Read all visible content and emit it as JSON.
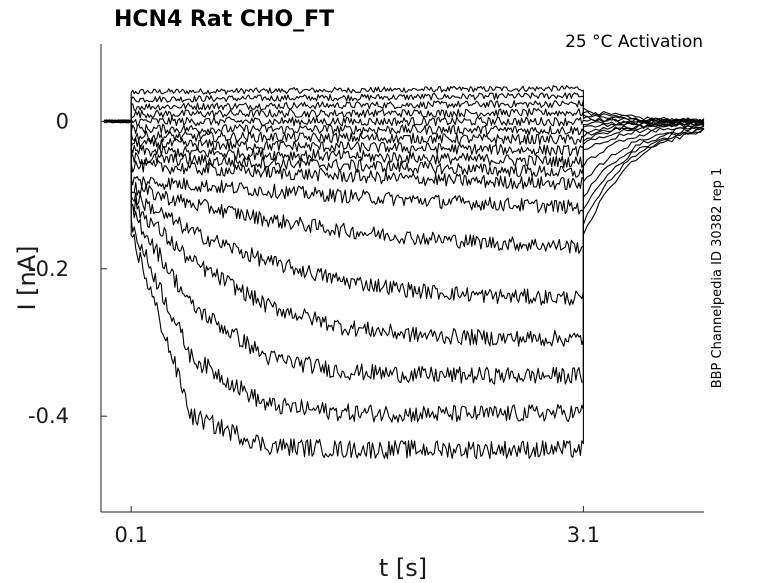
{
  "chart_data": {
    "type": "line",
    "title": "HCN4  Rat  CHO_FT",
    "annotation": "25 °C  Activation",
    "side_label": "BBP Channelpedia ID 30382 rep 1",
    "xlabel": "t [s]",
    "ylabel": "I [nA]",
    "xlim": [
      -0.1,
      3.9
    ],
    "ylim": [
      -0.53,
      0.105
    ],
    "x_ticks": [
      {
        "value": 0.1,
        "label": "0.1"
      },
      {
        "value": 3.1,
        "label": "3.1"
      }
    ],
    "y_ticks": [
      {
        "value": 0,
        "label": "0"
      },
      {
        "value": -0.2,
        "label": "-0.2"
      },
      {
        "value": -0.4,
        "label": "-0.4"
      }
    ],
    "step": {
      "start": 0.1,
      "end": 3.1
    },
    "grid": false,
    "legend": "none",
    "series": [
      {
        "values": [
          [
            0.1,
            0.04
          ],
          [
            3.1,
            0.045
          ]
        ]
      },
      {
        "values": [
          [
            0.1,
            0.03
          ],
          [
            3.1,
            0.035
          ]
        ]
      },
      {
        "values": [
          [
            0.1,
            0.02
          ],
          [
            3.1,
            0.024
          ]
        ]
      },
      {
        "values": [
          [
            0.1,
            0.01
          ],
          [
            3.1,
            0.012
          ]
        ]
      },
      {
        "values": [
          [
            0.1,
            0.0
          ],
          [
            3.1,
            0.0
          ]
        ]
      },
      {
        "values": [
          [
            0.1,
            -0.01
          ],
          [
            3.1,
            -0.012
          ]
        ]
      },
      {
        "values": [
          [
            0.1,
            -0.02
          ],
          [
            3.1,
            -0.025
          ]
        ]
      },
      {
        "values": [
          [
            0.1,
            -0.03
          ],
          [
            3.1,
            -0.04
          ]
        ]
      },
      {
        "values": [
          [
            0.1,
            -0.04
          ],
          [
            3.1,
            -0.055
          ]
        ]
      },
      {
        "values": [
          [
            0.1,
            -0.05
          ],
          [
            3.1,
            -0.07
          ]
        ]
      },
      {
        "values": [
          [
            0.1,
            -0.06
          ],
          [
            0.5,
            -0.064
          ],
          [
            1.0,
            -0.069
          ],
          [
            1.5,
            -0.074
          ],
          [
            2.0,
            -0.078
          ],
          [
            2.5,
            -0.082
          ],
          [
            3.1,
            -0.085
          ]
        ]
      },
      {
        "values": [
          [
            0.1,
            -0.08
          ],
          [
            0.5,
            -0.086
          ],
          [
            1.0,
            -0.094
          ],
          [
            1.5,
            -0.101
          ],
          [
            2.0,
            -0.107
          ],
          [
            2.5,
            -0.112
          ],
          [
            3.1,
            -0.117
          ]
        ]
      },
      {
        "values": [
          [
            0.1,
            -0.09
          ],
          [
            0.5,
            -0.112
          ],
          [
            1.0,
            -0.133
          ],
          [
            1.5,
            -0.148
          ],
          [
            2.0,
            -0.158
          ],
          [
            2.5,
            -0.165
          ],
          [
            3.1,
            -0.17
          ]
        ]
      },
      {
        "values": [
          [
            0.1,
            -0.1
          ],
          [
            0.5,
            -0.15
          ],
          [
            1.0,
            -0.19
          ],
          [
            1.5,
            -0.216
          ],
          [
            2.0,
            -0.23
          ],
          [
            2.5,
            -0.237
          ],
          [
            3.1,
            -0.24
          ]
        ]
      },
      {
        "values": [
          [
            0.1,
            -0.11
          ],
          [
            0.5,
            -0.19
          ],
          [
            1.0,
            -0.25
          ],
          [
            1.5,
            -0.279
          ],
          [
            2.0,
            -0.29
          ],
          [
            2.5,
            -0.294
          ],
          [
            3.1,
            -0.295
          ]
        ]
      },
      {
        "values": [
          [
            0.1,
            -0.12
          ],
          [
            0.5,
            -0.25
          ],
          [
            1.0,
            -0.32
          ],
          [
            1.5,
            -0.339
          ],
          [
            2.0,
            -0.344
          ],
          [
            2.5,
            -0.345
          ],
          [
            3.1,
            -0.345
          ]
        ]
      },
      {
        "values": [
          [
            0.1,
            -0.14
          ],
          [
            0.5,
            -0.32
          ],
          [
            1.0,
            -0.385
          ],
          [
            1.5,
            -0.395
          ],
          [
            2.0,
            -0.397
          ],
          [
            2.5,
            -0.397
          ],
          [
            3.1,
            -0.395
          ]
        ]
      },
      {
        "values": [
          [
            0.1,
            -0.15
          ],
          [
            0.5,
            -0.4
          ],
          [
            1.0,
            -0.44
          ],
          [
            1.5,
            -0.445
          ],
          [
            2.0,
            -0.445
          ],
          [
            2.5,
            -0.445
          ],
          [
            3.1,
            -0.445
          ]
        ]
      }
    ]
  }
}
